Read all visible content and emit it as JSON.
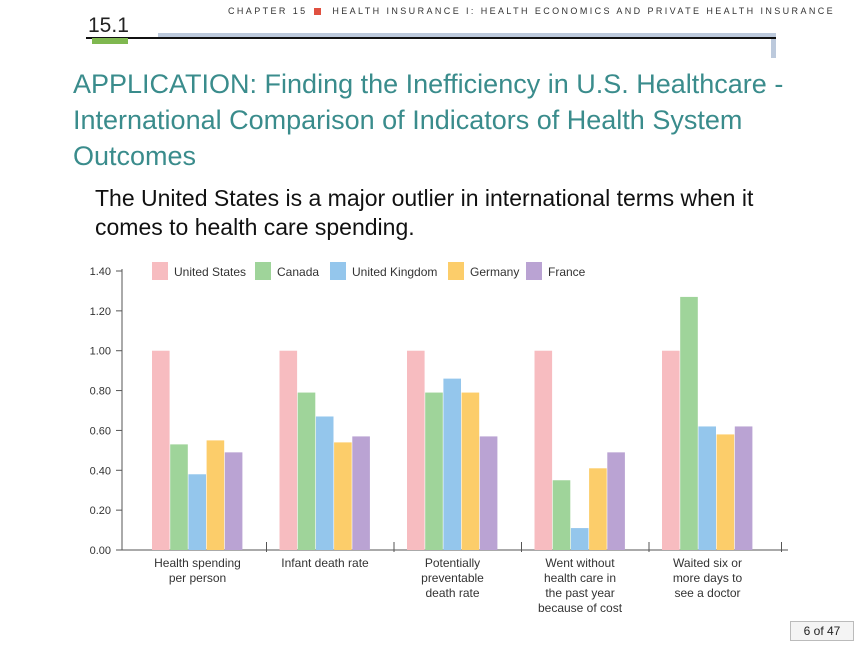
{
  "header": {
    "chapter": "CHAPTER 15",
    "chapter_title": "HEALTH INSURANCE I: HEALTH ECONOMICS AND PRIVATE HEALTH INSURANCE",
    "section": "15.1"
  },
  "slide": {
    "title": "APPLICATION: Finding the Inefficiency in U.S. Healthcare - International Comparison of Indicators of Health System Outcomes",
    "lead": "The United States is a major outlier in international terms when it comes to health care spending."
  },
  "footer": {
    "page": "6 of 47"
  },
  "colors": {
    "title": "#3a8c8c",
    "series": [
      "#f7bcc0",
      "#9fd49a",
      "#94c6ec",
      "#fccd6a",
      "#baa3d3"
    ]
  },
  "chart_data": {
    "type": "bar",
    "categories": [
      [
        "Health spending",
        "per person"
      ],
      [
        "Infant death rate"
      ],
      [
        "Potentially",
        "preventable",
        "death rate"
      ],
      [
        "Went without",
        "health care in",
        "the past year",
        "because of cost"
      ],
      [
        "Waited six or",
        "more days to",
        "see a doctor"
      ]
    ],
    "series": [
      {
        "name": "United States",
        "values": [
          1.0,
          1.0,
          1.0,
          1.0,
          1.0
        ]
      },
      {
        "name": "Canada",
        "values": [
          0.53,
          0.79,
          0.79,
          0.35,
          1.27
        ]
      },
      {
        "name": "United Kingdom",
        "values": [
          0.38,
          0.67,
          0.86,
          0.11,
          0.62
        ]
      },
      {
        "name": "Germany",
        "values": [
          0.55,
          0.54,
          0.79,
          0.41,
          0.58
        ]
      },
      {
        "name": "France",
        "values": [
          0.49,
          0.57,
          0.57,
          0.49,
          0.62
        ]
      }
    ],
    "yticks": [
      "0.00",
      "0.20",
      "0.40",
      "0.60",
      "0.80",
      "1.00",
      "1.20",
      "1.40"
    ],
    "ylim": [
      0,
      1.4
    ],
    "legend_position": "top"
  }
}
